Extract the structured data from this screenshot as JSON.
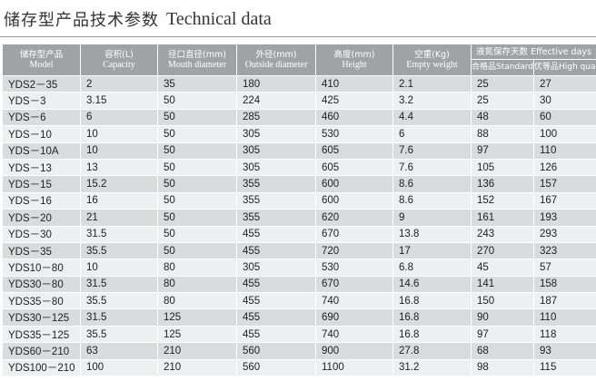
{
  "title": {
    "cn": "储存型产品技术参数",
    "en": "Technical data"
  },
  "headers": {
    "model": {
      "cn": "储存型产品",
      "en": "Model"
    },
    "capacity": {
      "cn": "容积(L)",
      "en": "Capacity"
    },
    "mouth": {
      "cn": "径口直径(mm)",
      "en": "Mouth diameter"
    },
    "outside": {
      "cn": "外径(mm)",
      "en": "Outside diameter"
    },
    "height": {
      "cn": "高度(mm)",
      "en": "Height"
    },
    "weight": {
      "cn": "空重(Kg)",
      "en": "Empty weight"
    },
    "effective": "液氮保存天数 Effective days",
    "standard": "合格品Standard",
    "high": "优等品High quality"
  },
  "rows": [
    [
      "YDS2－35",
      "2",
      "35",
      "180",
      "410",
      "2.1",
      "25",
      "27"
    ],
    [
      "YDS－3",
      "3.15",
      "50",
      "224",
      "425",
      "3.2",
      "25",
      "30"
    ],
    [
      "YDS－6",
      "6",
      "50",
      "285",
      "460",
      "4.4",
      "48",
      "60"
    ],
    [
      "YDS－10",
      "10",
      "50",
      "305",
      "530",
      "6",
      "88",
      "100"
    ],
    [
      "YDS－10A",
      "10",
      "50",
      "305",
      "605",
      "7.6",
      "97",
      "110"
    ],
    [
      "YDS－13",
      "13",
      "50",
      "305",
      "605",
      "7.6",
      "105",
      "126"
    ],
    [
      "YDS－15",
      "15.2",
      "50",
      "355",
      "600",
      "8.6",
      "136",
      "157"
    ],
    [
      "YDS－16",
      "16",
      "50",
      "355",
      "600",
      "8.6",
      "152",
      "167"
    ],
    [
      "YDS－20",
      "21",
      "50",
      "355",
      "620",
      "9",
      "161",
      "193"
    ],
    [
      "YDS－30",
      "31.5",
      "50",
      "455",
      "670",
      "13.8",
      "243",
      "293"
    ],
    [
      "YDS－35",
      "35.5",
      "50",
      "455",
      "720",
      "17",
      "270",
      "323"
    ],
    [
      "YDS10－80",
      "10",
      "80",
      "305",
      "530",
      "6.8",
      "45",
      "57"
    ],
    [
      "YDS30－80",
      "31.5",
      "80",
      "455",
      "670",
      "14.6",
      "141",
      "158"
    ],
    [
      "YDS35－80",
      "35.5",
      "80",
      "455",
      "740",
      "16.8",
      "150",
      "187"
    ],
    [
      "YDS30－125",
      "31.5",
      "125",
      "455",
      "690",
      "16.8",
      "90",
      "110"
    ],
    [
      "YDS35－125",
      "35.5",
      "125",
      "455",
      "740",
      "16.8",
      "97",
      "118"
    ],
    [
      "YDS60－210",
      "63",
      "210",
      "560",
      "900",
      "27.8",
      "68",
      "93"
    ],
    [
      "YDS100－210",
      "100",
      "210",
      "560",
      "1100",
      "31.2",
      "98",
      "115"
    ]
  ]
}
